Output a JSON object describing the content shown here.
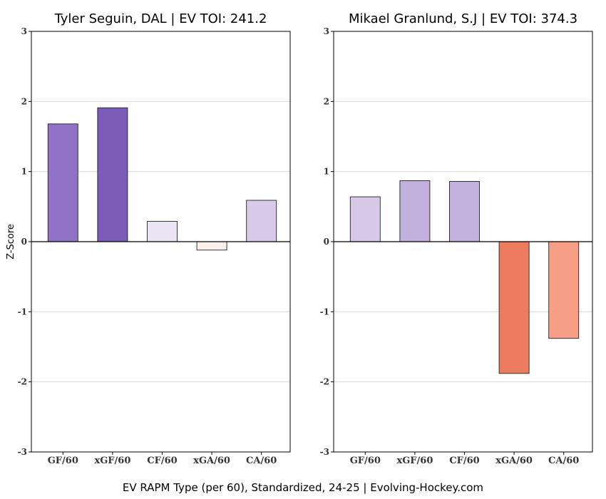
{
  "footer": "EV RAPM Type (per 60), Standardized, 24-25    |    Evolving-Hockey.com",
  "chart_data": [
    {
      "type": "bar",
      "title": "Tyler Seguin, DAL  |  EV TOI: 241.2",
      "ylabel": "Z-Score",
      "ylim": [
        -3,
        3
      ],
      "yticks": [
        -3,
        -2,
        -1,
        0,
        1,
        2,
        3
      ],
      "grid": true,
      "categories": [
        "GF/60",
        "xGF/60",
        "CF/60",
        "xGA/60",
        "CA/60"
      ],
      "values": [
        1.68,
        1.91,
        0.29,
        -0.12,
        0.59
      ],
      "colors": [
        "#9073c4",
        "#7b5cb8",
        "#ebe4f4",
        "#fdf0ec",
        "#d8cbe9"
      ]
    },
    {
      "type": "bar",
      "title": "Mikael Granlund, S.J  |  EV TOI: 374.3",
      "ylabel": "",
      "ylim": [
        -3,
        3
      ],
      "yticks": [
        -3,
        -2,
        -1,
        0,
        1,
        2,
        3
      ],
      "grid": true,
      "categories": [
        "GF/60",
        "xGF/60",
        "CF/60",
        "xGA/60",
        "CA/60"
      ],
      "values": [
        0.64,
        0.87,
        0.86,
        -1.88,
        -1.38
      ],
      "colors": [
        "#d6c9e8",
        "#c1b0dd",
        "#c3b2de",
        "#ec7c5f",
        "#f79f86"
      ]
    }
  ]
}
